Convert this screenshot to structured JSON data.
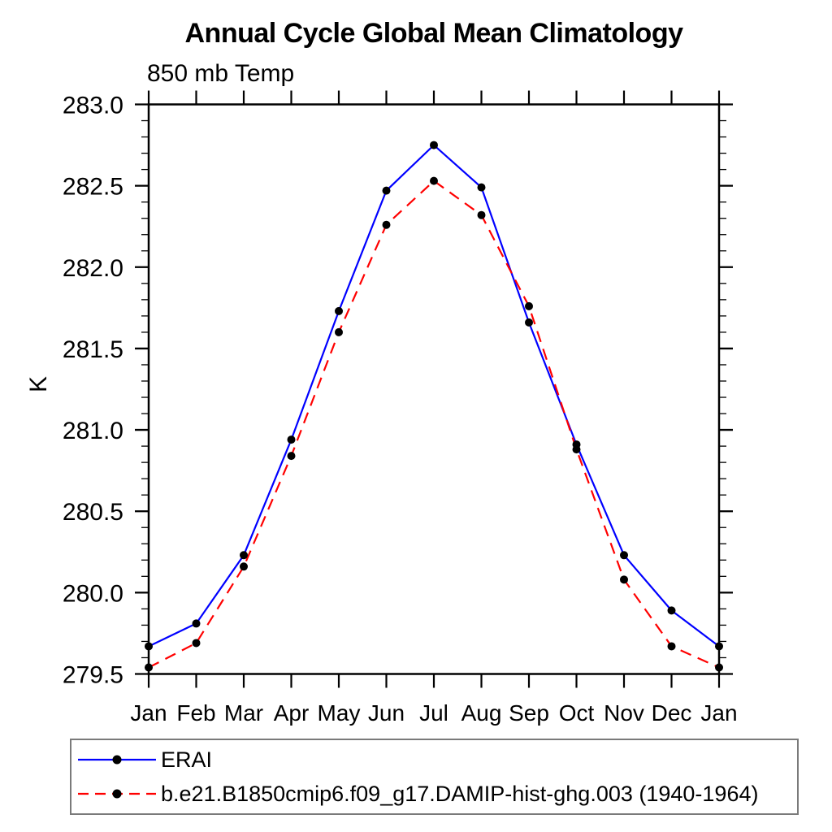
{
  "header": {
    "title": "Annual Cycle Global Mean Climatology",
    "subtitle": "850 mb Temp"
  },
  "chart_data": {
    "type": "line",
    "title": "Annual Cycle Global Mean Climatology",
    "subtitle": "850 mb Temp",
    "xlabel": "",
    "ylabel": "K",
    "categories": [
      "Jan",
      "Feb",
      "Mar",
      "Apr",
      "May",
      "Jun",
      "Jul",
      "Aug",
      "Sep",
      "Oct",
      "Nov",
      "Dec",
      "Jan"
    ],
    "series": [
      {
        "name": "ERAI",
        "color": "#0000ff",
        "line_style": "solid",
        "marker": "filled-circle",
        "marker_color": "#000000",
        "values": [
          279.67,
          279.81,
          280.23,
          280.94,
          281.73,
          282.47,
          282.75,
          282.49,
          281.66,
          280.91,
          280.23,
          279.89,
          279.67
        ]
      },
      {
        "name": "b.e21.B1850cmip6.f09_g17.DAMIP-hist-ghg.003 (1940-1964)",
        "color": "#ff0000",
        "line_style": "dashed",
        "marker": "filled-circle",
        "marker_color": "#000000",
        "values": [
          279.54,
          279.69,
          280.16,
          280.84,
          281.6,
          282.26,
          282.53,
          282.32,
          281.76,
          280.88,
          280.08,
          279.67,
          279.54
        ]
      }
    ],
    "ylim": [
      279.5,
      283.0
    ],
    "ytick_step": 0.5,
    "ytick_minor_step": 0.1,
    "ytick_labels": [
      "279.5",
      "280.0",
      "280.5",
      "281.0",
      "281.5",
      "282.0",
      "282.5",
      "283.0"
    ],
    "grid": false,
    "legend_position": "bottom-left",
    "axis_color": "#000000"
  }
}
